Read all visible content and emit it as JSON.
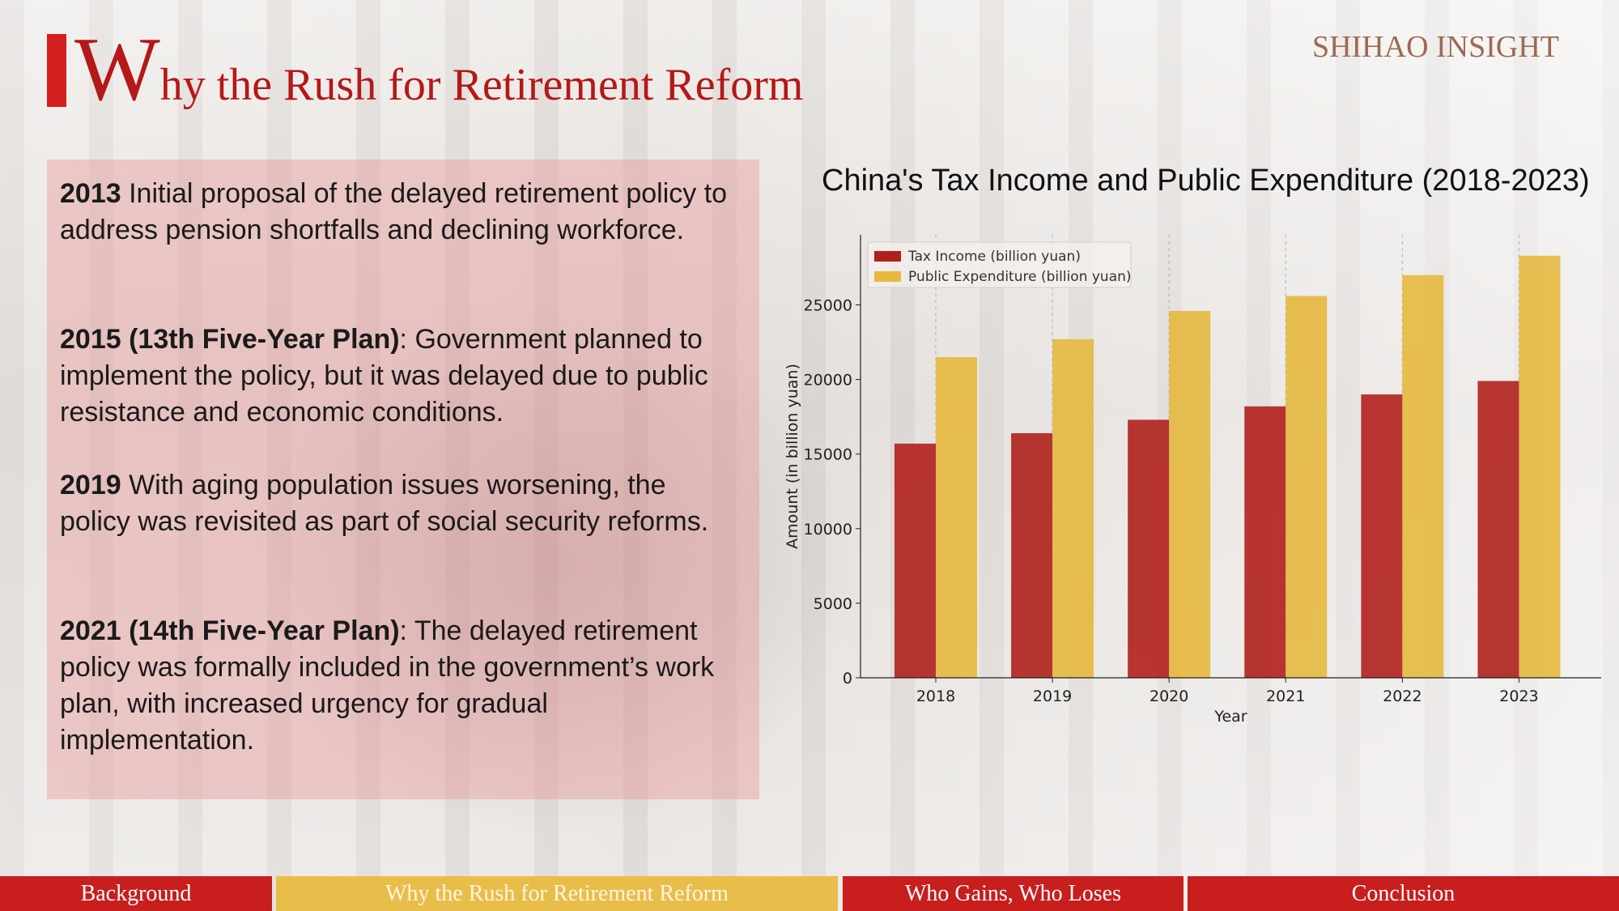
{
  "header": {
    "title_initial": "W",
    "title_rest": "hy the Rush for Retirement Reform",
    "brand": "SHIHAO INSIGHT"
  },
  "timeline": [
    {
      "year": "2013",
      "text": " Initial proposal of the delayed retirement policy to address pension shortfalls and declining workforce."
    },
    {
      "year": "2015 (13th Five-Year Plan)",
      "text": ": Government planned to implement the policy, but it was delayed due to public resistance and economic conditions."
    },
    {
      "year": "2019",
      "text": " With aging population issues worsening, the policy was revisited as part of social security reforms."
    },
    {
      "year": "2021 (14th Five-Year Plan)",
      "text": ": The delayed retirement policy was formally included in the government’s work plan, with increased urgency for gradual implementation."
    }
  ],
  "chart_data": {
    "type": "bar",
    "title": "China's Tax Income and Public Expenditure (2018-2023)",
    "xlabel": "Year",
    "ylabel": "Amount (in billion yuan)",
    "categories": [
      "2018",
      "2019",
      "2020",
      "2021",
      "2022",
      "2023"
    ],
    "series": [
      {
        "name": "Tax Income (billion yuan)",
        "values": [
          15700,
          16400,
          17300,
          18200,
          19000,
          19900
        ],
        "color": "#b0201c"
      },
      {
        "name": "Public Expenditure (billion yuan)",
        "values": [
          21500,
          22700,
          24600,
          25600,
          27000,
          28300
        ],
        "color": "#e6b83f"
      }
    ],
    "yticks": [
      0,
      5000,
      10000,
      15000,
      20000,
      25000
    ],
    "ylim": [
      0,
      29700
    ],
    "grid": "vertical dashed",
    "legend": "top-left"
  },
  "nav": {
    "tabs": [
      {
        "label": "Background"
      },
      {
        "label": "Why the Rush for Retirement Reform"
      },
      {
        "label": "Who Gains, Who Loses"
      },
      {
        "label": "Conclusion"
      }
    ]
  },
  "colors": {
    "accent_red": "#c81e1e",
    "accent_gold": "#e8bd4a",
    "title_red": "#b41818"
  }
}
